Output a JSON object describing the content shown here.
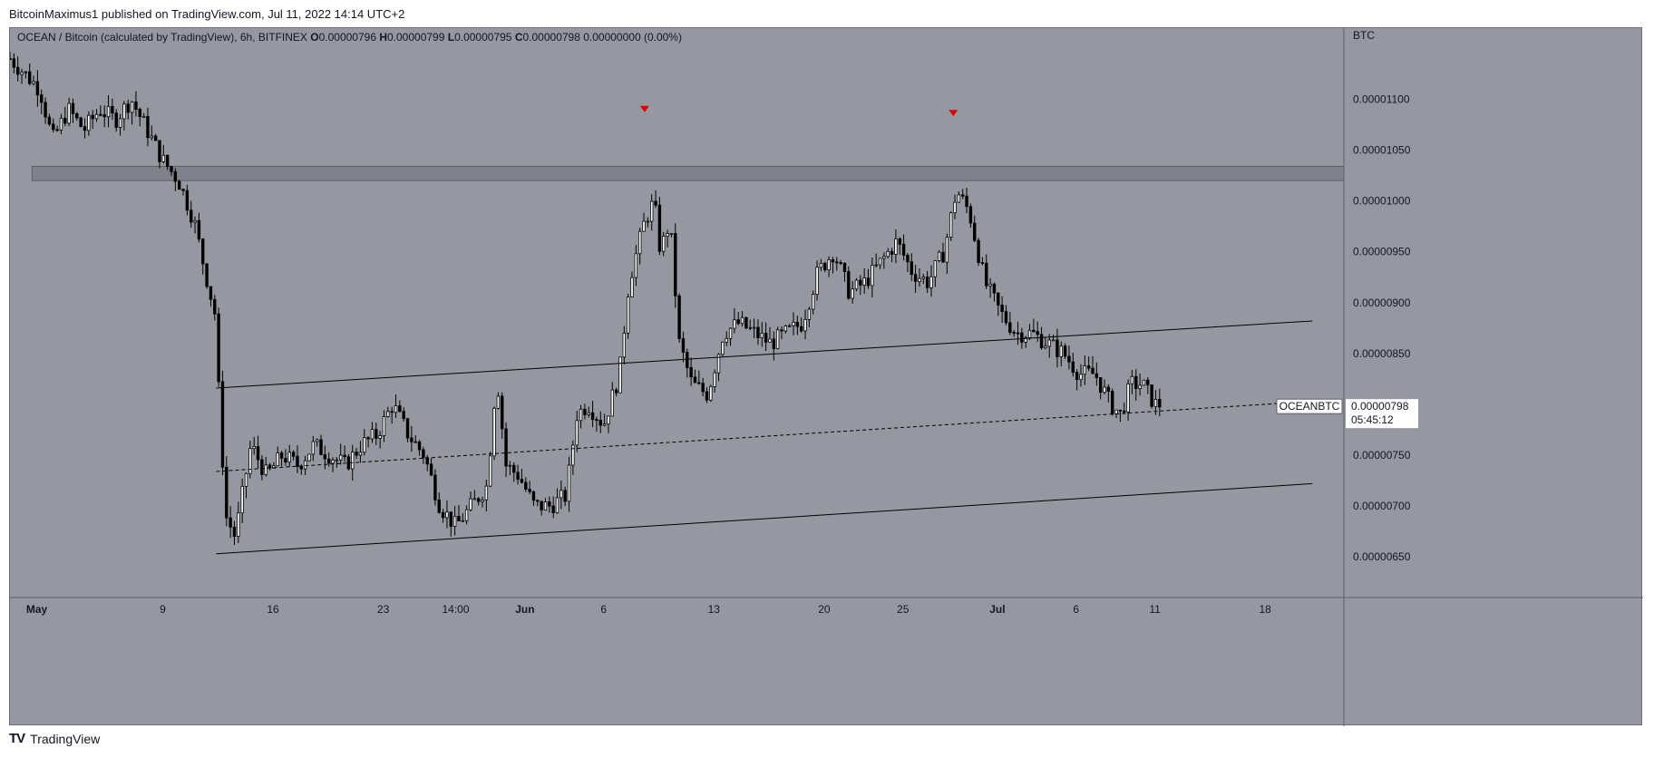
{
  "published": "BitcoinMaximus1 published on TradingView.com, Jul 11, 2022 14:14 UTC+2",
  "footer": {
    "brand": "TradingView",
    "logo": "TV"
  },
  "chart_data": {
    "type": "candlestick",
    "legend": {
      "symbol": "OCEAN / Bitcoin (calculated by TradingView), 6h, BITFINEX",
      "ohlc": [
        {
          "label": "O",
          "value": "0.00000796"
        },
        {
          "label": "H",
          "value": "0.00000799"
        },
        {
          "label": "L",
          "value": "0.00000795"
        },
        {
          "label": "C",
          "value": "0.00000798"
        }
      ],
      "change": "0.00000000 (0.00%)"
    },
    "y_axis": {
      "unit_label": "BTC",
      "ticks": [
        "0.00001100",
        "0.00001050",
        "0.00001000",
        "0.00000950",
        "0.00000900",
        "0.00000850",
        "0.00000800",
        "0.00000750",
        "0.00000700",
        "0.00000650"
      ],
      "tick_values": [
        1.1e-05,
        1.05e-05,
        1e-05,
        9.5e-06,
        9e-06,
        8.5e-06,
        8e-06,
        7.5e-06,
        7e-06,
        6.5e-06
      ],
      "range": [
        6.1e-06,
        1.17e-05
      ]
    },
    "x_axis": {
      "ticks": [
        {
          "label": "May",
          "day": 0,
          "bold": true
        },
        {
          "label": "9",
          "day": 8
        },
        {
          "label": "16",
          "day": 15
        },
        {
          "label": "23",
          "day": 22
        },
        {
          "label": "14:00",
          "day": 26.6
        },
        {
          "label": "Jun",
          "day": 31,
          "bold": true
        },
        {
          "label": "6",
          "day": 36
        },
        {
          "label": "13",
          "day": 43
        },
        {
          "label": "20",
          "day": 50
        },
        {
          "label": "25",
          "day": 55
        },
        {
          "label": "Jul",
          "day": 61,
          "bold": true
        },
        {
          "label": "6",
          "day": 66
        },
        {
          "label": "11",
          "day": 71
        },
        {
          "label": "18",
          "day": 78
        }
      ],
      "range_days": [
        -1.7,
        83
      ]
    },
    "price_label": {
      "symbol": "OCEANBTC",
      "price": "0.00000798",
      "countdown": "05:45:12",
      "value": 7.98e-06
    },
    "resistance_zone": {
      "from_day": -0.3,
      "to_day": 83,
      "low": 1.02e-05,
      "high": 1.034e-05
    },
    "channel_lines": [
      {
        "style": "solid",
        "start": {
          "day": 11.4,
          "value": 8.16e-06
        },
        "end": {
          "day": 81,
          "value": 8.82e-06
        }
      },
      {
        "style": "solid",
        "start": {
          "day": 11.4,
          "value": 6.53e-06
        },
        "end": {
          "day": 81,
          "value": 7.22e-06
        }
      },
      {
        "style": "dashed",
        "start": {
          "day": 11.4,
          "value": 7.34e-06
        },
        "end": {
          "day": 81,
          "value": 8.03e-06
        }
      }
    ],
    "markers": [
      {
        "shape": "down-triangle",
        "color": "#e00000",
        "day": 38.6,
        "value": 1.09e-05
      },
      {
        "shape": "down-triangle",
        "color": "#e00000",
        "day": 58.2,
        "value": 1.086e-05
      }
    ],
    "series": [
      {
        "name": "OCEANBTC",
        "close_path": [
          [
            -1.7,
            1.14e-05
          ],
          [
            0.2,
            1.11e-05
          ],
          [
            1,
            1.06e-05
          ],
          [
            2,
            1.09e-05
          ],
          [
            3,
            1.07e-05
          ],
          [
            4,
            1.09e-05
          ],
          [
            5,
            1.08e-05
          ],
          [
            6,
            1.1e-05
          ],
          [
            7,
            1.07e-05
          ],
          [
            8,
            1.04e-05
          ],
          [
            9,
            1.02e-05
          ],
          [
            10,
            9.8e-06
          ],
          [
            10.7,
            9.3e-06
          ],
          [
            11.3,
            8.9e-06
          ],
          [
            11.6,
            8e-06
          ],
          [
            12,
            6.9e-06
          ],
          [
            12.6,
            6.7e-06
          ],
          [
            13.6,
            7.6e-06
          ],
          [
            14.6,
            7.3e-06
          ],
          [
            15.6,
            7.5e-06
          ],
          [
            16.6,
            7.4e-06
          ],
          [
            17.6,
            7.6e-06
          ],
          [
            18.6,
            7.5e-06
          ],
          [
            19.6,
            7.4e-06
          ],
          [
            20.6,
            7.6e-06
          ],
          [
            21.6,
            7.7e-06
          ],
          [
            22.6,
            8e-06
          ],
          [
            23.6,
            7.7e-06
          ],
          [
            24.6,
            7.5e-06
          ],
          [
            25.6,
            7e-06
          ],
          [
            26.6,
            6.8e-06
          ],
          [
            27.6,
            7e-06
          ],
          [
            28.6,
            7.2e-06
          ],
          [
            29.2,
            8.3e-06
          ],
          [
            29.8,
            7.4e-06
          ],
          [
            30.6,
            7.3e-06
          ],
          [
            31.6,
            7e-06
          ],
          [
            32.6,
            7e-06
          ],
          [
            33.6,
            7.1e-06
          ],
          [
            34.3,
            7.9e-06
          ],
          [
            35,
            8e-06
          ],
          [
            36,
            7.8e-06
          ],
          [
            37,
            8.3e-06
          ],
          [
            37.6,
            9.2e-06
          ],
          [
            38.6,
            9.8e-06
          ],
          [
            39.2,
            1e-05
          ],
          [
            39.6,
            9.5e-06
          ],
          [
            40.2,
            9.8e-06
          ],
          [
            40.8,
            8.6e-06
          ],
          [
            41.6,
            8.2e-06
          ],
          [
            42.6,
            8.1e-06
          ],
          [
            43.6,
            8.7e-06
          ],
          [
            44.6,
            8.8e-06
          ],
          [
            45.6,
            8.7e-06
          ],
          [
            46.6,
            8.6e-06
          ],
          [
            47.6,
            8.7e-06
          ],
          [
            48.6,
            8.8e-06
          ],
          [
            49.6,
            9.3e-06
          ],
          [
            50.6,
            9.5e-06
          ],
          [
            51.6,
            9.1e-06
          ],
          [
            52.6,
            9.2e-06
          ],
          [
            53.6,
            9.4e-06
          ],
          [
            54.6,
            9.6e-06
          ],
          [
            55.6,
            9.3e-06
          ],
          [
            56.6,
            9.2e-06
          ],
          [
            57.6,
            9.5e-06
          ],
          [
            58.4,
            1.01e-05
          ],
          [
            59.2,
            9.9e-06
          ],
          [
            60.2,
            9.2e-06
          ],
          [
            61.2,
            8.9e-06
          ],
          [
            62.2,
            8.7e-06
          ],
          [
            63.2,
            8.7e-06
          ],
          [
            64.2,
            8.6e-06
          ],
          [
            65.2,
            8.5e-06
          ],
          [
            66.2,
            8.3e-06
          ],
          [
            67.2,
            8.3e-06
          ],
          [
            68.2,
            8e-06
          ],
          [
            68.8,
            7.9e-06
          ],
          [
            69.5,
            8.2e-06
          ],
          [
            70.2,
            8.2e-06
          ],
          [
            71,
            8e-06
          ],
          [
            71.4,
            8e-06
          ]
        ]
      }
    ]
  }
}
